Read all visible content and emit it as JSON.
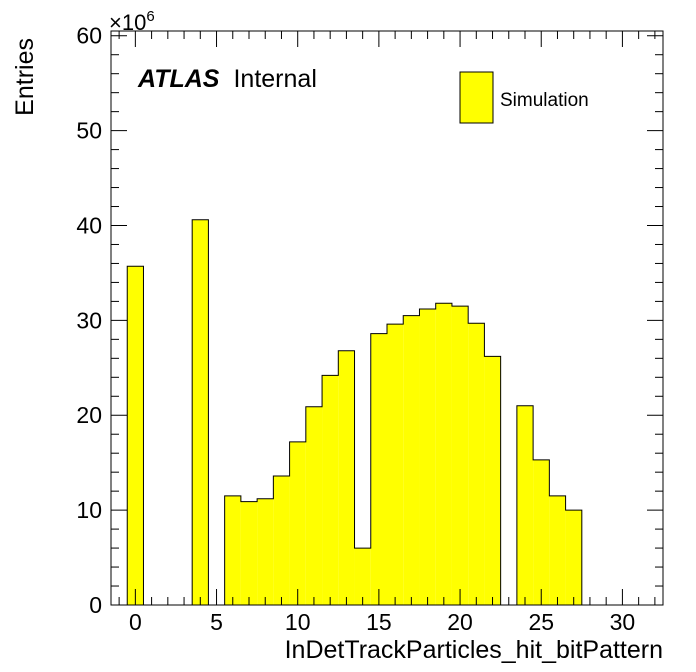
{
  "chart_data": {
    "type": "bar",
    "subtype": "histogram",
    "xlabel": "InDetTrackParticles_hit_bitPattern",
    "ylabel": "Entries",
    "y_scale_label": "×10",
    "y_scale_exponent": "6",
    "xlim": [
      -1.5,
      32.5
    ],
    "ylim": [
      0,
      60.5
    ],
    "x_ticks": [
      0,
      5,
      10,
      15,
      20,
      25,
      30
    ],
    "x_tick_labels": [
      "0",
      "5",
      "10",
      "15",
      "20",
      "25",
      "30"
    ],
    "y_ticks": [
      0,
      10,
      20,
      30,
      40,
      50,
      60
    ],
    "y_tick_labels": [
      "0",
      "10",
      "20",
      "30",
      "40",
      "50",
      "60"
    ],
    "bin_width": 1,
    "bins": [
      0,
      1,
      2,
      3,
      4,
      5,
      6,
      7,
      8,
      9,
      10,
      11,
      12,
      13,
      14,
      15,
      16,
      17,
      18,
      19,
      20,
      21,
      22,
      23,
      24,
      25,
      26,
      27,
      28,
      29,
      30,
      31
    ],
    "values": [
      35.7,
      0,
      0,
      0,
      40.6,
      0,
      11.5,
      10.9,
      11.2,
      13.6,
      17.2,
      20.9,
      24.2,
      26.8,
      6.0,
      28.6,
      29.6,
      30.5,
      31.2,
      31.8,
      31.5,
      29.7,
      26.2,
      0,
      21.0,
      15.3,
      11.5,
      10.0,
      0,
      0,
      0,
      0
    ],
    "fill_color": "#ffff00",
    "edge_color": "#000000",
    "legend": {
      "label": "Simulation",
      "position": "top-right"
    },
    "annotation": {
      "bold": "ATLAS",
      "text": "Internal",
      "position": "top-left"
    },
    "grid": false
  }
}
